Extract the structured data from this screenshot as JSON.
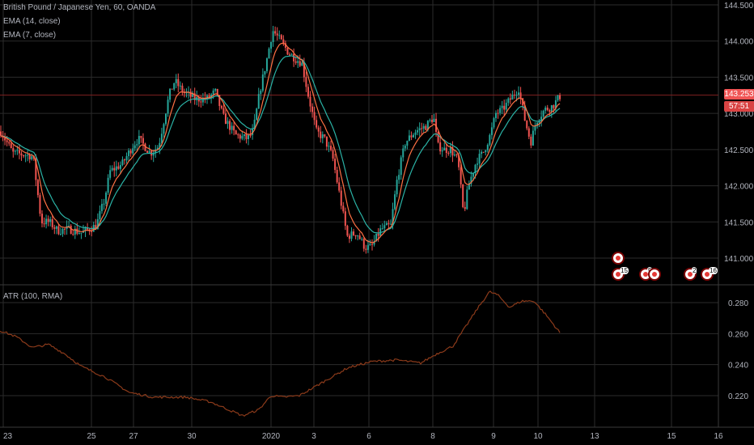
{
  "colors": {
    "background": "#000000",
    "grid": "#2b2b2b",
    "candle_up": "#26a69a",
    "candle_down": "#ef5350",
    "ema14": "#2bb3a6",
    "ema7": "#ff7043",
    "atr": "#8b3a1a",
    "axis_text": "#b2b5be",
    "last_price_bg": "#f05454",
    "timer_bg": "#d94343",
    "last_price_line": "#7a1f1f"
  },
  "legend": {
    "symbol": "British Pound / Japanese Yen, 60, OANDA",
    "ema14": "EMA (14, close)",
    "ema7": "EMA (7, close)",
    "atr": "ATR (100, RMA)"
  },
  "price_scale": {
    "ticks": [
      "144.500",
      "144.000",
      "143.500",
      "143.000",
      "142.500",
      "142.000",
      "141.500",
      "141.000"
    ],
    "last_price": "143.253",
    "countdown": "57:51"
  },
  "atr_scale": {
    "ticks": [
      "0.280",
      "0.260",
      "0.240",
      "0.220"
    ]
  },
  "time_axis": {
    "labels": [
      "23",
      "25",
      "27",
      "30",
      "2020",
      "3",
      "6",
      "8",
      "9",
      "10",
      "13",
      "15",
      "16"
    ]
  },
  "events": [
    {
      "icon": "economic-event-icon",
      "count": ""
    },
    {
      "icon": "economic-event-icon",
      "count": "15"
    },
    {
      "icon": "economic-event-icon",
      "count": "5"
    },
    {
      "icon": "economic-event-icon",
      "count": ""
    },
    {
      "icon": "economic-event-icon",
      "count": "2"
    },
    {
      "icon": "economic-event-icon",
      "count": "16"
    }
  ],
  "chart_data": {
    "type": "candlestick",
    "symbol": "British Pound / Japanese Yen, 60, OANDA",
    "price_range": [
      140.75,
      144.55
    ],
    "price_path": [
      [
        0,
        142.75
      ],
      [
        15,
        142.45
      ],
      [
        35,
        142.42
      ],
      [
        40,
        142.4
      ],
      [
        50,
        141.5
      ],
      [
        60,
        141.5
      ],
      [
        70,
        141.38
      ],
      [
        85,
        141.4
      ],
      [
        100,
        141.35
      ],
      [
        118,
        141.45
      ],
      [
        128,
        141.8
      ],
      [
        135,
        142.2
      ],
      [
        150,
        142.3
      ],
      [
        163,
        142.55
      ],
      [
        170,
        142.65
      ],
      [
        185,
        142.45
      ],
      [
        195,
        142.55
      ],
      [
        208,
        143.25
      ],
      [
        215,
        143.45
      ],
      [
        225,
        143.3
      ],
      [
        240,
        143.2
      ],
      [
        255,
        143.2
      ],
      [
        265,
        143.3
      ],
      [
        275,
        142.95
      ],
      [
        290,
        142.7
      ],
      [
        305,
        142.65
      ],
      [
        312,
        142.75
      ],
      [
        320,
        143.3
      ],
      [
        328,
        143.7
      ],
      [
        336,
        144.15
      ],
      [
        346,
        144.0
      ],
      [
        355,
        143.85
      ],
      [
        365,
        143.75
      ],
      [
        372,
        143.7
      ],
      [
        380,
        143.25
      ],
      [
        390,
        142.75
      ],
      [
        400,
        142.65
      ],
      [
        410,
        142.4
      ],
      [
        420,
        141.8
      ],
      [
        428,
        141.3
      ],
      [
        440,
        141.35
      ],
      [
        450,
        141.15
      ],
      [
        458,
        141.15
      ],
      [
        470,
        141.4
      ],
      [
        482,
        141.45
      ],
      [
        490,
        142.1
      ],
      [
        500,
        142.6
      ],
      [
        512,
        142.75
      ],
      [
        525,
        142.82
      ],
      [
        535,
        142.95
      ],
      [
        540,
        142.55
      ],
      [
        548,
        142.5
      ],
      [
        556,
        142.5
      ],
      [
        565,
        142.35
      ],
      [
        572,
        141.6
      ],
      [
        578,
        142.0
      ],
      [
        588,
        142.35
      ],
      [
        596,
        142.45
      ],
      [
        605,
        142.7
      ],
      [
        612,
        143.0
      ],
      [
        620,
        143.05
      ],
      [
        630,
        143.2
      ],
      [
        640,
        143.35
      ],
      [
        648,
        142.9
      ],
      [
        655,
        142.6
      ],
      [
        662,
        142.9
      ],
      [
        672,
        143.05
      ],
      [
        682,
        143.1
      ],
      [
        692,
        143.25
      ]
    ],
    "atr_range": [
      0.203,
      0.291
    ],
    "atr_path": [
      [
        0,
        0.262
      ],
      [
        20,
        0.258
      ],
      [
        40,
        0.251
      ],
      [
        60,
        0.253
      ],
      [
        80,
        0.247
      ],
      [
        100,
        0.239
      ],
      [
        130,
        0.232
      ],
      [
        160,
        0.222
      ],
      [
        190,
        0.219
      ],
      [
        230,
        0.219
      ],
      [
        260,
        0.216
      ],
      [
        300,
        0.207
      ],
      [
        320,
        0.211
      ],
      [
        335,
        0.22
      ],
      [
        350,
        0.219
      ],
      [
        370,
        0.22
      ],
      [
        400,
        0.229
      ],
      [
        430,
        0.238
      ],
      [
        460,
        0.242
      ],
      [
        490,
        0.243
      ],
      [
        520,
        0.241
      ],
      [
        540,
        0.247
      ],
      [
        560,
        0.252
      ],
      [
        575,
        0.264
      ],
      [
        590,
        0.276
      ],
      [
        605,
        0.287
      ],
      [
        615,
        0.285
      ],
      [
        630,
        0.277
      ],
      [
        645,
        0.281
      ],
      [
        660,
        0.281
      ],
      [
        675,
        0.272
      ],
      [
        693,
        0.26
      ]
    ],
    "ema14_lag": 8,
    "ema7_lag": 4
  }
}
